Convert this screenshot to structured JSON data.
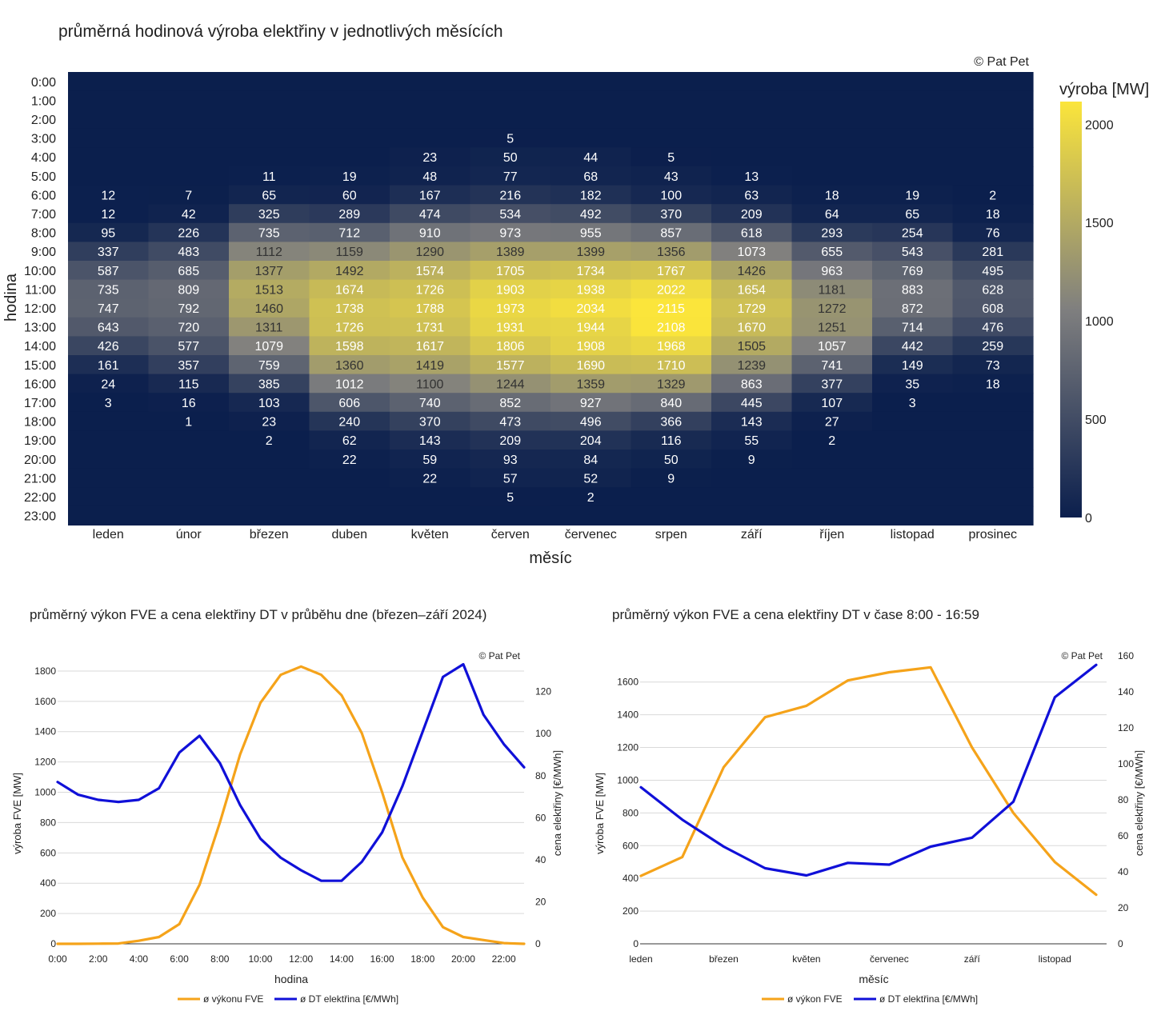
{
  "chart_data": [
    {
      "type": "heatmap",
      "title": "průměrná hodinová výroba elektřiny v jednotlivých měsících",
      "copyright": "© Pat Pet",
      "xlabel": "měsíc",
      "ylabel": "hodina",
      "colorbar_title": "výroba [MW]",
      "colorbar_ticks": [
        0,
        500,
        1000,
        1500,
        2000
      ],
      "zmin": 0,
      "zmax": 2115,
      "colors": {
        "low": "#0b1f4d",
        "mid": "#7f7f7f",
        "high": "#fbe53b"
      },
      "months": [
        "leden",
        "únor",
        "březen",
        "duben",
        "květen",
        "červen",
        "červenec",
        "srpen",
        "září",
        "říjen",
        "listopad",
        "prosinec"
      ],
      "hours": [
        "0:00",
        "1:00",
        "2:00",
        "3:00",
        "4:00",
        "5:00",
        "6:00",
        "7:00",
        "8:00",
        "9:00",
        "10:00",
        "11:00",
        "12:00",
        "13:00",
        "14:00",
        "15:00",
        "16:00",
        "17:00",
        "18:00",
        "19:00",
        "20:00",
        "21:00",
        "22:00",
        "23:00"
      ],
      "values": [
        [
          0,
          0,
          0,
          0,
          0,
          0,
          0,
          0,
          0,
          0,
          0,
          0
        ],
        [
          0,
          0,
          0,
          0,
          0,
          0,
          0,
          0,
          0,
          0,
          0,
          0
        ],
        [
          0,
          0,
          0,
          0,
          0,
          0,
          0,
          0,
          0,
          0,
          0,
          0
        ],
        [
          0,
          0,
          0,
          0,
          0,
          5,
          0,
          0,
          0,
          0,
          0,
          0
        ],
        [
          0,
          0,
          0,
          0,
          23,
          50,
          44,
          5,
          0,
          0,
          0,
          0
        ],
        [
          0,
          0,
          11,
          19,
          48,
          77,
          68,
          43,
          13,
          0,
          0,
          0
        ],
        [
          12,
          7,
          65,
          60,
          167,
          216,
          182,
          100,
          63,
          18,
          19,
          2
        ],
        [
          12,
          42,
          325,
          289,
          474,
          534,
          492,
          370,
          209,
          64,
          65,
          18
        ],
        [
          95,
          226,
          735,
          712,
          910,
          973,
          955,
          857,
          618,
          293,
          254,
          76
        ],
        [
          337,
          483,
          1112,
          1159,
          1290,
          1389,
          1399,
          1356,
          1073,
          655,
          543,
          281
        ],
        [
          587,
          685,
          1377,
          1492,
          1574,
          1705,
          1734,
          1767,
          1426,
          963,
          769,
          495
        ],
        [
          735,
          809,
          1513,
          1674,
          1726,
          1903,
          1938,
          2022,
          1654,
          1181,
          883,
          628
        ],
        [
          747,
          792,
          1460,
          1738,
          1788,
          1973,
          2034,
          2115,
          1729,
          1272,
          872,
          608
        ],
        [
          643,
          720,
          1311,
          1726,
          1731,
          1931,
          1944,
          2108,
          1670,
          1251,
          714,
          476
        ],
        [
          426,
          577,
          1079,
          1598,
          1617,
          1806,
          1908,
          1968,
          1505,
          1057,
          442,
          259
        ],
        [
          161,
          357,
          759,
          1360,
          1419,
          1577,
          1690,
          1710,
          1239,
          741,
          149,
          73
        ],
        [
          24,
          115,
          385,
          1012,
          1100,
          1244,
          1359,
          1329,
          863,
          377,
          35,
          18
        ],
        [
          3,
          16,
          103,
          606,
          740,
          852,
          927,
          840,
          445,
          107,
          3,
          0
        ],
        [
          0,
          1,
          23,
          240,
          370,
          473,
          496,
          366,
          143,
          27,
          0,
          0
        ],
        [
          0,
          0,
          2,
          62,
          143,
          209,
          204,
          116,
          55,
          2,
          0,
          0
        ],
        [
          0,
          0,
          0,
          22,
          59,
          93,
          84,
          50,
          9,
          0,
          0,
          0
        ],
        [
          0,
          0,
          0,
          0,
          22,
          57,
          52,
          9,
          0,
          0,
          0,
          0
        ],
        [
          0,
          0,
          0,
          0,
          0,
          5,
          2,
          0,
          0,
          0,
          0,
          0
        ],
        [
          0,
          0,
          0,
          0,
          0,
          0,
          0,
          0,
          0,
          0,
          0,
          0
        ]
      ]
    },
    {
      "type": "line",
      "title": "průměrný výkon FVE a cena elektřiny DT v průběhu dne (březen–září 2024)",
      "copyright": "© Pat Pet",
      "xlabel": "hodina",
      "ylabel_left": "výroba FVE [MW]",
      "ylabel_right": "cena elektřiny [€/MWh]",
      "x": [
        0,
        1,
        2,
        3,
        4,
        5,
        6,
        7,
        8,
        9,
        10,
        11,
        12,
        13,
        14,
        15,
        16,
        17,
        18,
        19,
        20,
        21,
        22,
        23
      ],
      "x_ticks": [
        "0:00",
        "2:00",
        "4:00",
        "6:00",
        "8:00",
        "10:00",
        "12:00",
        "14:00",
        "16:00",
        "18:00",
        "20:00",
        "22:00"
      ],
      "ylim_left": [
        0,
        1900
      ],
      "y_ticks_left": [
        0,
        200,
        400,
        600,
        800,
        1000,
        1200,
        1400,
        1600,
        1800
      ],
      "ylim_right": [
        0,
        137
      ],
      "y_ticks_right": [
        0,
        20,
        40,
        60,
        80,
        100,
        120
      ],
      "series": [
        {
          "name": "ø výkonu FVE",
          "axis": "left",
          "color": "#f5a31a",
          "values": [
            0,
            0,
            1,
            2,
            20,
            45,
            130,
            390,
            800,
            1250,
            1590,
            1775,
            1830,
            1775,
            1640,
            1390,
            1000,
            570,
            305,
            110,
            45,
            25,
            5,
            0
          ]
        },
        {
          "name": "ø DT elektřina [€/MWh]",
          "axis": "right",
          "color": "#1010d8",
          "values": [
            77,
            71,
            68.5,
            67.5,
            68.5,
            74,
            91,
            99,
            86,
            66,
            50,
            41,
            35,
            30,
            30,
            39,
            53,
            75,
            101,
            127,
            133,
            109,
            95,
            84
          ]
        }
      ]
    },
    {
      "type": "line",
      "title": "průměrný výkon FVE a cena elektřiny DT v čase 8:00 - 16:59",
      "copyright": "© Pat Pet",
      "xlabel": "měsíc",
      "ylabel_left": "výroba FVE [MW]",
      "ylabel_right": "cena elektřiny [€/MWh]",
      "categories": [
        "leden",
        "únor",
        "březen",
        "duben",
        "květen",
        "červen",
        "červenec",
        "srpen",
        "září",
        "říjen",
        "listopad",
        "prosinec"
      ],
      "x_ticks": [
        "leden",
        "březen",
        "květen",
        "červenec",
        "září",
        "listopad"
      ],
      "ylim_left": [
        0,
        1760
      ],
      "y_ticks_left": [
        0,
        200,
        400,
        600,
        800,
        1000,
        1200,
        1400,
        1600
      ],
      "ylim_right": [
        0,
        160
      ],
      "y_ticks_right": [
        0,
        20,
        40,
        60,
        80,
        100,
        120,
        140,
        160
      ],
      "series": [
        {
          "name": "ø výkon FVE",
          "axis": "left",
          "color": "#f5a31a",
          "values": [
            415,
            530,
            1080,
            1385,
            1455,
            1610,
            1660,
            1690,
            1200,
            800,
            500,
            300
          ]
        },
        {
          "name": "ø DT elektřina [€/MWh]",
          "axis": "right",
          "color": "#1010d8",
          "values": [
            87,
            69,
            54,
            42,
            38,
            45,
            44,
            54,
            59,
            79,
            137,
            155
          ]
        }
      ]
    }
  ]
}
